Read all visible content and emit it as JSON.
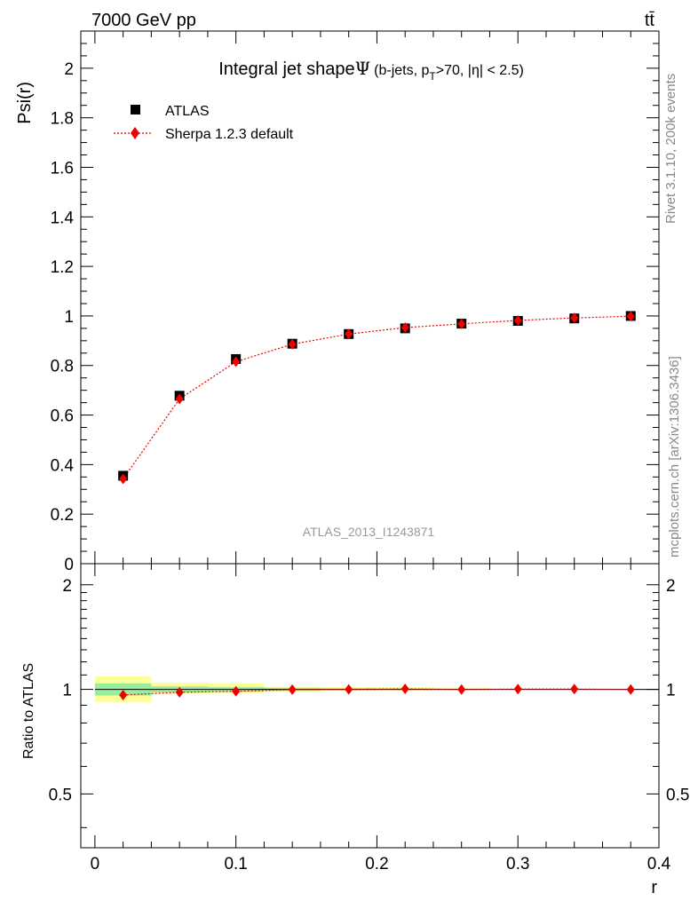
{
  "header": {
    "energy_label": "7000 GeV pp",
    "process_label": "tt̄"
  },
  "side_labels": {
    "rivet": "Rivet 3.1.10,  200k events",
    "mcplots": "mcplots.cern.ch [arXiv:1306.3436]"
  },
  "colors": {
    "data": "#000000",
    "mc": "#ee0000",
    "band_inner": "#99ee99",
    "band_outer": "#ffff99"
  },
  "chart_data": [
    {
      "type": "scatter",
      "panel": "main",
      "title_main": "Integral jet shape",
      "title_symbol": "Ψ",
      "title_detail": "(b-jets, p",
      "title_sub": "T",
      "title_detail_rest": ">70, |η| < 2.5)",
      "ylabel": "Psi(r)",
      "watermark": "ATLAS_2013_I1243871",
      "xlim": [
        -0.01,
        0.4
      ],
      "ylim": [
        0,
        2.15
      ],
      "yticks": [
        0,
        0.2,
        0.4,
        0.6,
        0.8,
        1,
        1.2,
        1.4,
        1.6,
        1.8,
        2
      ],
      "ytick_labels": [
        "0",
        "0.2",
        "0.4",
        "0.6",
        "0.8",
        "1",
        "1.2",
        "1.4",
        "1.6",
        "1.8",
        "2"
      ],
      "legend_placement": "top-left",
      "x": [
        0.02,
        0.06,
        0.1,
        0.14,
        0.18,
        0.22,
        0.26,
        0.3,
        0.34,
        0.38
      ],
      "series": [
        {
          "name": "ATLAS",
          "style": "square-markers",
          "values": [
            0.355,
            0.678,
            0.826,
            0.888,
            0.927,
            0.95,
            0.969,
            0.98,
            0.99,
            1.0
          ]
        },
        {
          "name": "Sherpa 1.2.3 default",
          "style": "diamond-dotted-line",
          "values": [
            0.342,
            0.665,
            0.815,
            0.886,
            0.927,
            0.953,
            0.968,
            0.982,
            0.992,
            0.999
          ]
        }
      ]
    },
    {
      "type": "line",
      "panel": "ratio",
      "ylabel": "Ratio to ATLAS",
      "xlabel": "r",
      "xlim": [
        -0.01,
        0.4
      ],
      "ylim": [
        0.35,
        2.3
      ],
      "xticks": [
        0,
        0.1,
        0.2,
        0.3,
        0.4
      ],
      "xtick_labels": [
        "0",
        "0.1",
        "0.2",
        "0.3",
        "0.4"
      ],
      "yticks": [
        0.5,
        1,
        2
      ],
      "ytick_labels": [
        "0.5",
        "1",
        "2"
      ],
      "x": [
        0.02,
        0.06,
        0.1,
        0.14,
        0.18,
        0.22,
        0.26,
        0.3,
        0.34,
        0.38
      ],
      "uncertainty_bands": {
        "x_edges": [
          0.0,
          0.04,
          0.08,
          0.12,
          0.16,
          0.2,
          0.24,
          0.28,
          0.32,
          0.36,
          0.4
        ],
        "inner": [
          [
            0.96,
            1.04
          ],
          [
            0.98,
            1.02
          ],
          [
            0.985,
            1.015
          ],
          [
            0.99,
            1.01
          ],
          [
            0.993,
            1.007
          ],
          [
            0.995,
            1.005
          ],
          [
            0.996,
            1.004
          ],
          [
            0.998,
            1.002
          ],
          [
            0.999,
            1.001
          ],
          [
            0.9995,
            1.0005
          ]
        ],
        "outer": [
          [
            0.92,
            1.09
          ],
          [
            0.97,
            1.045
          ],
          [
            0.975,
            1.04
          ],
          [
            0.985,
            1.02
          ],
          [
            0.99,
            1.015
          ],
          [
            0.99,
            1.015
          ],
          [
            0.992,
            1.012
          ],
          [
            0.997,
            1.003
          ],
          [
            0.998,
            1.002
          ],
          [
            0.999,
            1.001
          ]
        ]
      },
      "series": [
        {
          "name": "Sherpa 1.2.3 default",
          "values": [
            0.963,
            0.981,
            0.987,
            0.998,
            1.0,
            1.003,
            0.999,
            1.002,
            1.002,
            0.999
          ]
        }
      ]
    }
  ]
}
